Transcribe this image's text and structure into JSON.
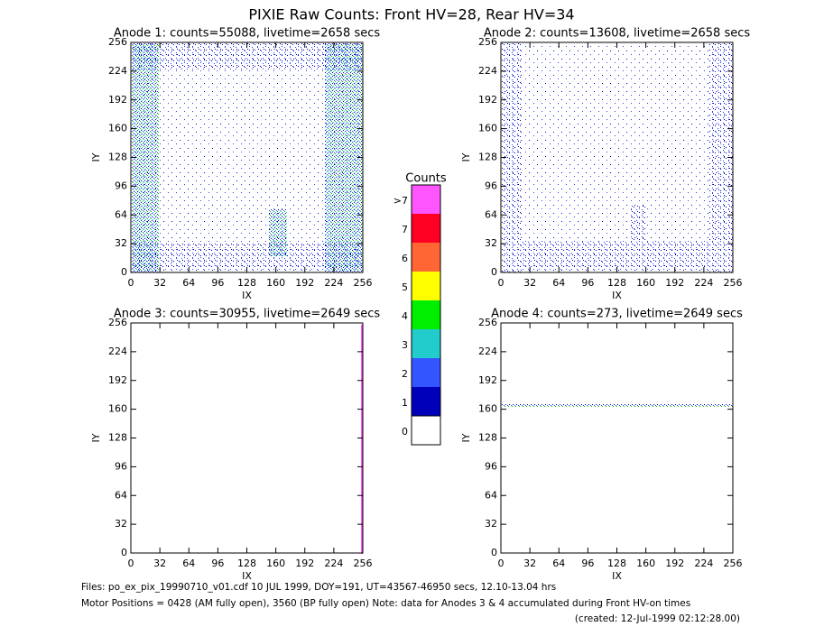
{
  "page_title": "PIXIE Raw Counts:  Front HV=28, Rear HV=34",
  "chart_data": [
    {
      "type": "image",
      "title": "Anode 1: counts=55088, livetime=2658 secs",
      "xlabel": "IX",
      "ylabel": "IY",
      "xlim": [
        0,
        256
      ],
      "ylim": [
        0,
        256
      ],
      "xticks": [
        0,
        32,
        64,
        96,
        128,
        160,
        192,
        224,
        256
      ],
      "yticks": [
        0,
        32,
        64,
        96,
        128,
        160,
        192,
        224,
        256
      ]
    },
    {
      "type": "image",
      "title": "Anode 2: counts=13608, livetime=2658 secs",
      "xlabel": "IX",
      "ylabel": "IY",
      "xlim": [
        0,
        256
      ],
      "ylim": [
        0,
        256
      ],
      "xticks": [
        0,
        32,
        64,
        96,
        128,
        160,
        192,
        224,
        256
      ],
      "yticks": [
        0,
        32,
        64,
        96,
        128,
        160,
        192,
        224,
        256
      ]
    },
    {
      "type": "image",
      "title": "Anode 3: counts=30955, livetime=2649 secs",
      "xlabel": "IX",
      "ylabel": "IY",
      "xlim": [
        0,
        256
      ],
      "ylim": [
        0,
        256
      ],
      "xticks": [
        0,
        32,
        64,
        96,
        128,
        160,
        192,
        224,
        256
      ],
      "yticks": [
        0,
        32,
        64,
        96,
        128,
        160,
        192,
        224,
        256
      ]
    },
    {
      "type": "image",
      "title": "Anode 4: counts=273, livetime=2649 secs",
      "xlabel": "IX",
      "ylabel": "IY",
      "xlim": [
        0,
        256
      ],
      "ylim": [
        0,
        256
      ],
      "xticks": [
        0,
        32,
        64,
        96,
        128,
        160,
        192,
        224,
        256
      ],
      "yticks": [
        0,
        32,
        64,
        96,
        128,
        160,
        192,
        224,
        256
      ]
    }
  ],
  "colorbar": {
    "title": "Counts",
    "labels": [
      ">7",
      "7",
      "6",
      "5",
      "4",
      "3",
      "2",
      "1",
      "0"
    ],
    "colors": [
      "#ff55ff",
      "#ff0022",
      "#ff6633",
      "#ffff00",
      "#00ee00",
      "#22cccc",
      "#3355ff",
      "#0000bb",
      "#ffffff"
    ]
  },
  "footer": {
    "files": "Files: po_ex_pix_19990710_v01.cdf    10 JUL 1999, DOY=191, UT=43567-46950 secs, 12.10-13.04 hrs",
    "motor": "Motor Positions = 0428 (AM fully open), 3560 (BP fully open)    Note: data for Anodes 3 & 4 accumulated during Front HV-on times",
    "created": "(created: 12-Jul-1999 02:12:28.00)"
  }
}
